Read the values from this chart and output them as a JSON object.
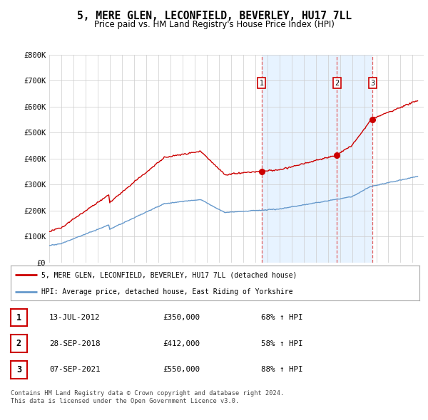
{
  "title": "5, MERE GLEN, LECONFIELD, BEVERLEY, HU17 7LL",
  "subtitle": "Price paid vs. HM Land Registry's House Price Index (HPI)",
  "title_fontsize": 10.5,
  "subtitle_fontsize": 8.5,
  "ylim": [
    0,
    800000
  ],
  "yticks": [
    0,
    100000,
    200000,
    300000,
    400000,
    500000,
    600000,
    700000,
    800000
  ],
  "ytick_labels": [
    "£0",
    "£100K",
    "£200K",
    "£300K",
    "£400K",
    "£500K",
    "£600K",
    "£700K",
    "£800K"
  ],
  "sale_dates": [
    "2012-07-13",
    "2018-09-28",
    "2021-09-07"
  ],
  "sale_prices": [
    350000,
    412000,
    550000
  ],
  "sale_labels": [
    "1",
    "2",
    "3"
  ],
  "vline_color": "#e06060",
  "red_line_color": "#cc0000",
  "blue_line_color": "#6699cc",
  "shade_color": "#ddeeff",
  "legend_label_red": "5, MERE GLEN, LECONFIELD, BEVERLEY, HU17 7LL (detached house)",
  "legend_label_blue": "HPI: Average price, detached house, East Riding of Yorkshire",
  "table_entries": [
    {
      "num": "1",
      "date": "13-JUL-2012",
      "price": "£350,000",
      "change": "68% ↑ HPI"
    },
    {
      "num": "2",
      "date": "28-SEP-2018",
      "price": "£412,000",
      "change": "58% ↑ HPI"
    },
    {
      "num": "3",
      "date": "07-SEP-2021",
      "price": "£550,000",
      "change": "88% ↑ HPI"
    }
  ],
  "footer": "Contains HM Land Registry data © Crown copyright and database right 2024.\nThis data is licensed under the Open Government Licence v3.0.",
  "background_color": "#ffffff",
  "grid_color": "#cccccc"
}
